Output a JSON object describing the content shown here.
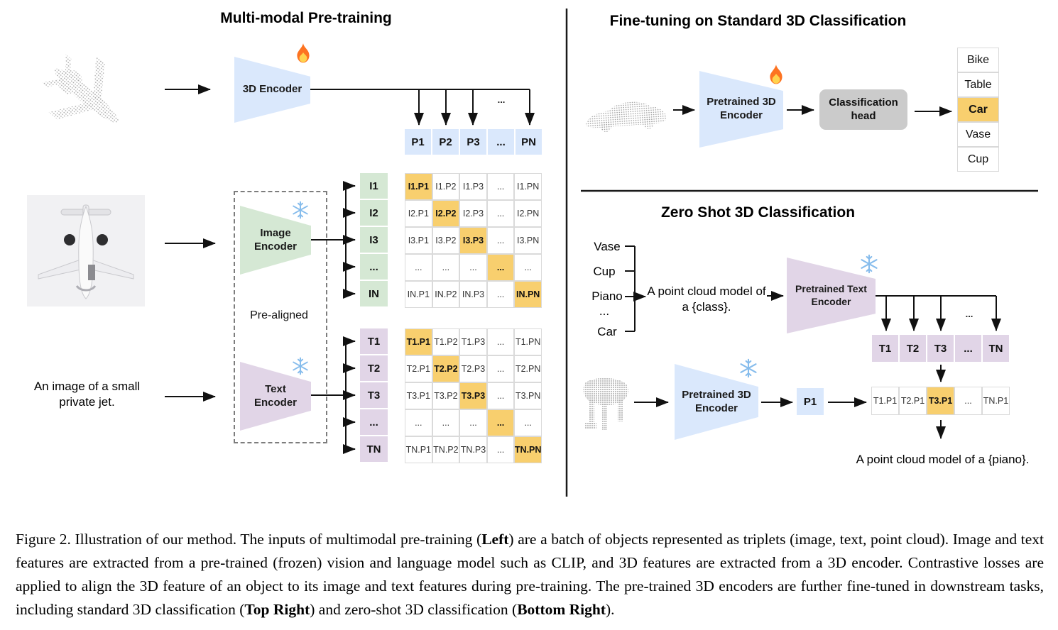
{
  "colors": {
    "encoder_blue": "#dae8fc",
    "encoder_green": "#d5e8d4",
    "encoder_purple": "#e1d5e7",
    "highlight_orange": "#f8cf6e",
    "head_gray": "#cbcbcb"
  },
  "pretraining": {
    "title": "Multi-modal Pre-training",
    "encoder_3d_label": "3D Encoder",
    "image_encoder_label": "Image\nEncoder",
    "text_encoder_label": "Text\nEncoder",
    "prealigned_label": "Pre-aligned",
    "image_caption": "An image of a small\nprivate jet.",
    "ellipsis": "...",
    "p_row": {
      "rows": [
        [
          "P1",
          "P2",
          "P3",
          "...",
          "PN"
        ]
      ],
      "hl": []
    },
    "i_col": {
      "rows": [
        [
          "I1"
        ],
        [
          "I2"
        ],
        [
          "I3"
        ],
        [
          "..."
        ],
        [
          "IN"
        ]
      ],
      "hl": []
    },
    "t_col": {
      "rows": [
        [
          "T1"
        ],
        [
          "T2"
        ],
        [
          "T3"
        ],
        [
          "..."
        ],
        [
          "TN"
        ]
      ],
      "hl": []
    },
    "image_matrix": {
      "rows": [
        [
          "I1.P1",
          "I1.P2",
          "I1.P3",
          "...",
          "I1.PN"
        ],
        [
          "I2.P1",
          "I2.P2",
          "I2.P3",
          "...",
          "I2.PN"
        ],
        [
          "I3.P1",
          "I3.P2",
          "I3.P3",
          "...",
          "I3.PN"
        ],
        [
          "...",
          "...",
          "...",
          "...",
          "..."
        ],
        [
          "IN.P1",
          "IN.P2",
          "IN.P3",
          "...",
          "IN.PN"
        ]
      ],
      "hl": [
        "0,0",
        "1,1",
        "2,2",
        "3,3",
        "4,4"
      ]
    },
    "text_matrix": {
      "rows": [
        [
          "T1.P1",
          "T1.P2",
          "T1.P3",
          "...",
          "T1.PN"
        ],
        [
          "T2.P1",
          "T2.P2",
          "T2.P3",
          "...",
          "T2.PN"
        ],
        [
          "T3.P1",
          "T3.P2",
          "T3.P3",
          "...",
          "T3.PN"
        ],
        [
          "...",
          "...",
          "...",
          "...",
          "..."
        ],
        [
          "TN.P1",
          "TN.P2",
          "TN.P3",
          "...",
          "TN.PN"
        ]
      ],
      "hl": [
        "0,0",
        "1,1",
        "2,2",
        "3,3",
        "4,4"
      ]
    }
  },
  "finetuning": {
    "title": "Fine-tuning on Standard 3D Classification",
    "encoder_label": "Pretrained 3D\nEncoder",
    "head_label": "Classification\nhead",
    "classes": {
      "rows": [
        [
          "Bike"
        ],
        [
          "Table"
        ],
        [
          "Car"
        ],
        [
          "Vase"
        ],
        [
          "Cup"
        ]
      ],
      "hl": [
        "2,0"
      ]
    }
  },
  "zeroshot": {
    "title": "Zero Shot 3D Classification",
    "class_words": [
      "Vase",
      "Cup",
      "Piano",
      "...",
      "Car"
    ],
    "prompt": "A point cloud model of\na {class}.",
    "text_encoder_label": "Pretrained Text\nEncoder",
    "encoder_3d_label": "Pretrained 3D\nEncoder",
    "p1_label": "P1",
    "ellipsis": "...",
    "t_row": {
      "rows": [
        [
          "T1",
          "T2",
          "T3",
          "...",
          "TN"
        ]
      ],
      "hl": []
    },
    "sim_row": {
      "rows": [
        [
          "T1.P1",
          "T2.P1",
          "T3.P1",
          "...",
          "TN.P1"
        ]
      ],
      "hl": [
        "0,2"
      ]
    },
    "result_prompt": "A point cloud model of a {piano}."
  },
  "caption": {
    "parts": [
      {
        "text": "Figure 2. Illustration of our method. The inputs of multimodal pre-training (",
        "bold": false
      },
      {
        "text": "Left",
        "bold": true
      },
      {
        "text": ") are a batch of objects represented as triplets (image, text, point cloud). Image and text features are extracted from a pre-trained (frozen) vision and language model such as CLIP, and 3D features are extracted from a 3D encoder. Contrastive losses are applied to align the 3D feature of an object to its image and text features during pre-training. The pre-trained 3D encoders are further fine-tuned in downstream tasks, including standard 3D classification (",
        "bold": false
      },
      {
        "text": "Top Right",
        "bold": true
      },
      {
        "text": ") and zero-shot 3D classification (",
        "bold": false
      },
      {
        "text": "Bottom Right",
        "bold": true
      },
      {
        "text": ").",
        "bold": false
      }
    ]
  }
}
